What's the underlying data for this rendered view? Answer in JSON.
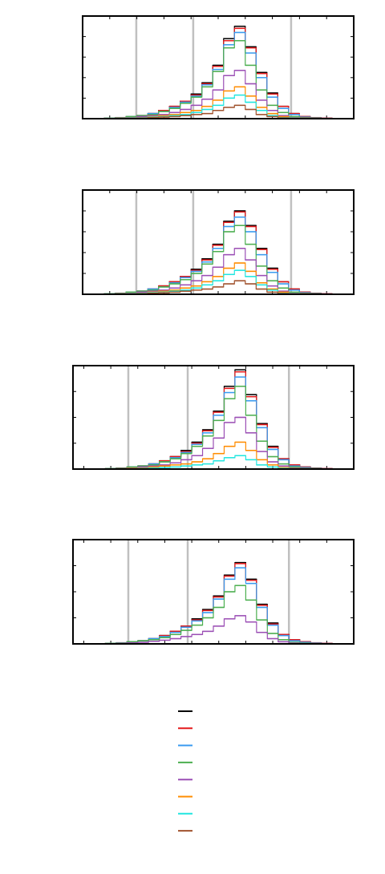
{
  "chart_data": [
    {
      "type": "histogram",
      "xlim": [
        0,
        100
      ],
      "ylim": [
        0,
        100
      ],
      "xticks": [
        0,
        10,
        20,
        30,
        40,
        50,
        60,
        70,
        80,
        90,
        100
      ],
      "yticks": [
        0,
        20,
        40,
        60,
        80,
        100
      ],
      "reference_lines": [
        19.8,
        40.8,
        76.9
      ],
      "reference_color": "#c0c0c0",
      "bins": [
        0,
        4,
        8,
        12,
        16,
        20,
        24,
        28,
        32,
        36,
        40,
        44,
        48,
        52,
        56,
        60,
        64,
        68,
        72,
        76,
        80,
        84,
        88,
        92,
        96,
        100
      ],
      "series": [
        {
          "color": "#000000",
          "values": [
            0,
            0,
            0.5,
            1,
            2,
            3,
            5,
            8,
            12,
            17,
            24,
            35,
            52,
            78,
            90,
            70,
            45,
            25,
            12,
            5,
            2,
            1,
            0.5,
            0,
            0
          ]
        },
        {
          "color": "#e41a1c",
          "values": [
            0,
            0,
            0.5,
            1,
            2,
            3,
            5,
            8,
            12,
            17,
            23,
            34,
            51,
            76,
            88,
            69,
            44,
            24,
            12,
            5,
            2,
            1,
            0.5,
            0,
            0
          ]
        },
        {
          "color": "#3a9bf0",
          "values": [
            0,
            0,
            0.4,
            1,
            2,
            3,
            5,
            7,
            11,
            16,
            22,
            33,
            48,
            72,
            84,
            64,
            40,
            21,
            10,
            4,
            1.5,
            0.7,
            0.3,
            0,
            0
          ]
        },
        {
          "color": "#4caf50",
          "values": [
            0,
            0,
            0.4,
            0.9,
            2,
            3,
            4,
            7,
            10,
            15,
            21,
            31,
            46,
            69,
            76,
            52,
            28,
            13,
            6,
            2,
            1,
            0.4,
            0.2,
            0,
            0
          ]
        },
        {
          "color": "#9b4fb5",
          "values": [
            0,
            0,
            0.2,
            0.5,
            1,
            2,
            3,
            4,
            6,
            9,
            13,
            19,
            28,
            42,
            47,
            34,
            18,
            8,
            3,
            1,
            0.5,
            0.2,
            0,
            0,
            0
          ]
        },
        {
          "color": "#ff8c00",
          "values": [
            0,
            0,
            0.1,
            0.3,
            0.7,
            1,
            2,
            3,
            4,
            6,
            8,
            12,
            18,
            27,
            31,
            22,
            11,
            5,
            2,
            0.7,
            0.3,
            0,
            0,
            0,
            0
          ]
        },
        {
          "color": "#21e6e0",
          "values": [
            0,
            0,
            0.1,
            0.2,
            0.5,
            0.8,
            1.5,
            2,
            3,
            4,
            6,
            9,
            13,
            20,
            23,
            16,
            8,
            3,
            1,
            0.5,
            0.2,
            0,
            0,
            0,
            0
          ]
        },
        {
          "color": "#a0522d",
          "values": [
            0,
            0,
            0,
            0.1,
            0.3,
            0.5,
            1,
            1.5,
            2,
            3,
            4,
            5,
            8,
            11,
            13,
            9,
            4,
            2,
            0.7,
            0.3,
            0,
            0,
            0,
            0,
            0
          ]
        }
      ]
    },
    {
      "type": "histogram",
      "xlim": [
        0,
        100
      ],
      "ylim": [
        0,
        100
      ],
      "xticks": [
        0,
        10,
        20,
        30,
        40,
        50,
        60,
        70,
        80,
        90,
        100
      ],
      "yticks": [
        0,
        20,
        40,
        60,
        80,
        100
      ],
      "reference_lines": [
        19.8,
        40.8,
        76.9
      ],
      "reference_color": "#c0c0c0",
      "bins": [
        0,
        4,
        8,
        12,
        16,
        20,
        24,
        28,
        32,
        36,
        40,
        44,
        48,
        52,
        56,
        60,
        64,
        68,
        72,
        76,
        80,
        84,
        88,
        92,
        96,
        100
      ],
      "series": [
        {
          "color": "#000000",
          "values": [
            0,
            0,
            0.5,
            1,
            2,
            3,
            5,
            8,
            12,
            17,
            24,
            34,
            48,
            70,
            80,
            66,
            44,
            25,
            12,
            5,
            2,
            1,
            0.5,
            0,
            0
          ]
        },
        {
          "color": "#e41a1c",
          "values": [
            0,
            0,
            0.5,
            1,
            2,
            3,
            5,
            8,
            12,
            17,
            23,
            33,
            47,
            69,
            79,
            65,
            43,
            24,
            12,
            5,
            2,
            1,
            0.5,
            0,
            0
          ]
        },
        {
          "color": "#3a9bf0",
          "values": [
            0,
            0,
            0.4,
            1,
            2,
            3,
            5,
            7,
            11,
            16,
            22,
            31,
            44,
            65,
            74,
            60,
            38,
            21,
            10,
            4,
            1.5,
            0.7,
            0.3,
            0,
            0
          ]
        },
        {
          "color": "#4caf50",
          "values": [
            0,
            0,
            0.4,
            0.9,
            2,
            3,
            4,
            7,
            10,
            14,
            20,
            29,
            41,
            60,
            66,
            48,
            27,
            13,
            6,
            2,
            1,
            0.4,
            0.2,
            0,
            0
          ]
        },
        {
          "color": "#9b4fb5",
          "values": [
            0,
            0,
            0.2,
            0.5,
            1,
            2,
            3,
            4,
            6,
            9,
            13,
            18,
            26,
            38,
            44,
            33,
            18,
            8,
            3,
            1,
            0.5,
            0.2,
            0,
            0,
            0
          ]
        },
        {
          "color": "#ff8c00",
          "values": [
            0,
            0,
            0.1,
            0.3,
            0.7,
            1,
            2,
            3,
            4,
            6,
            8,
            12,
            17,
            25,
            30,
            22,
            11,
            5,
            2,
            0.7,
            0.3,
            0,
            0,
            0,
            0
          ]
        },
        {
          "color": "#21e6e0",
          "values": [
            0,
            0,
            0.1,
            0.2,
            0.5,
            0.8,
            1.5,
            2,
            3,
            4,
            6,
            9,
            13,
            19,
            23,
            17,
            9,
            4,
            1,
            0.5,
            0.2,
            0,
            0,
            0,
            0
          ]
        },
        {
          "color": "#a0522d",
          "values": [
            0,
            0,
            0,
            0.1,
            0.3,
            0.5,
            1,
            1.5,
            2,
            3,
            4,
            5,
            7,
            10,
            13,
            10,
            5,
            2,
            0.7,
            0.3,
            0,
            0,
            0,
            0,
            0
          ]
        }
      ]
    },
    {
      "type": "histogram",
      "xlim": [
        -4,
        100
      ],
      "ylim": [
        0,
        100
      ],
      "xticks": [
        0,
        10,
        20,
        30,
        40,
        50,
        60,
        70,
        80,
        90,
        100
      ],
      "yticks": [
        0,
        25,
        50,
        75,
        100
      ],
      "reference_lines": [
        16.5,
        38.5,
        76
      ],
      "reference_color": "#c0c0c0",
      "bins": [
        0,
        4,
        8,
        12,
        16,
        20,
        24,
        28,
        32,
        36,
        40,
        44,
        48,
        52,
        56,
        60,
        64,
        68,
        72,
        76,
        80,
        84,
        88,
        92,
        96,
        100
      ],
      "series": [
        {
          "color": "#000000",
          "values": [
            0,
            0,
            0.5,
            1,
            2,
            3,
            5,
            8,
            12,
            18,
            26,
            38,
            56,
            80,
            96,
            72,
            44,
            22,
            10,
            4,
            2,
            1,
            0.5,
            0,
            0
          ]
        },
        {
          "color": "#e41a1c",
          "values": [
            0,
            0,
            0.5,
            1,
            2,
            3,
            5,
            8,
            12,
            17,
            25,
            37,
            55,
            78,
            94,
            70,
            43,
            21,
            10,
            4,
            2,
            1,
            0.5,
            0,
            0
          ]
        },
        {
          "color": "#3a9bf0",
          "values": [
            0,
            0,
            0.4,
            1,
            2,
            3,
            5,
            7,
            11,
            16,
            24,
            35,
            52,
            74,
            89,
            66,
            40,
            19,
            9,
            3,
            1.5,
            0.7,
            0.3,
            0,
            0
          ]
        },
        {
          "color": "#4caf50",
          "values": [
            0,
            0,
            0.4,
            0.9,
            2,
            3,
            4,
            7,
            10,
            15,
            22,
            32,
            47,
            68,
            80,
            52,
            27,
            12,
            5,
            2,
            1,
            0.4,
            0.2,
            0,
            0
          ]
        },
        {
          "color": "#9b4fb5",
          "values": [
            0,
            0,
            0.2,
            0.5,
            1,
            2,
            3,
            4,
            6,
            9,
            13,
            20,
            30,
            45,
            50,
            35,
            17,
            7,
            3,
            1,
            0.5,
            0.2,
            0,
            0,
            0
          ]
        },
        {
          "color": "#ff8c00",
          "values": [
            0,
            0,
            0.1,
            0.3,
            0.7,
            1,
            2,
            3,
            4,
            5,
            7,
            10,
            15,
            22,
            26,
            18,
            9,
            4,
            1.5,
            0.5,
            0.2,
            0,
            0,
            0,
            0
          ]
        },
        {
          "color": "#21e6e0",
          "values": [
            0,
            0,
            0,
            0.1,
            0.3,
            0.5,
            1,
            1.5,
            2,
            3,
            4,
            5,
            8,
            11,
            13,
            9,
            4,
            2,
            0.7,
            0.3,
            0,
            0,
            0,
            0,
            0
          ]
        }
      ]
    },
    {
      "type": "histogram",
      "xlim": [
        -4,
        100
      ],
      "ylim": [
        0,
        100
      ],
      "xticks": [
        0,
        10,
        20,
        30,
        40,
        50,
        60,
        70,
        80,
        90,
        100
      ],
      "yticks": [
        0,
        25,
        50,
        75,
        100
      ],
      "reference_lines": [
        16.5,
        38.5,
        76
      ],
      "reference_color": "#c0c0c0",
      "bins": [
        0,
        4,
        8,
        12,
        16,
        20,
        24,
        28,
        32,
        36,
        40,
        44,
        48,
        52,
        56,
        60,
        64,
        68,
        72,
        76,
        80,
        84,
        88,
        92,
        96,
        100
      ],
      "series": [
        {
          "color": "#000000",
          "values": [
            0,
            0,
            0.5,
            1,
            2,
            3,
            5,
            8,
            12,
            17,
            24,
            33,
            46,
            66,
            78,
            62,
            38,
            20,
            9,
            4,
            2,
            1,
            0.5,
            0,
            0
          ]
        },
        {
          "color": "#e41a1c",
          "values": [
            0,
            0,
            0.5,
            1,
            2,
            3,
            5,
            8,
            12,
            17,
            23,
            32,
            45,
            65,
            77,
            61,
            37,
            19,
            9,
            4,
            2,
            1,
            0.5,
            0,
            0
          ]
        },
        {
          "color": "#3a9bf0",
          "values": [
            0,
            0,
            0.4,
            1,
            2,
            3,
            5,
            7,
            11,
            16,
            22,
            30,
            43,
            62,
            73,
            58,
            35,
            18,
            8,
            3,
            1.5,
            0.7,
            0.3,
            0,
            0
          ]
        },
        {
          "color": "#4caf50",
          "values": [
            0,
            0,
            0.4,
            0.9,
            2,
            3,
            4,
            6,
            9,
            13,
            18,
            25,
            35,
            50,
            56,
            42,
            23,
            10,
            4,
            1.5,
            0.7,
            0.3,
            0,
            0,
            0
          ]
        },
        {
          "color": "#9b4fb5",
          "values": [
            0,
            0,
            0.2,
            0.5,
            1,
            1.5,
            2.5,
            3.5,
            5,
            7,
            9,
            12,
            17,
            24,
            27,
            21,
            11,
            5,
            2,
            0.7,
            0.3,
            0,
            0,
            0,
            0
          ]
        }
      ]
    }
  ]
}
